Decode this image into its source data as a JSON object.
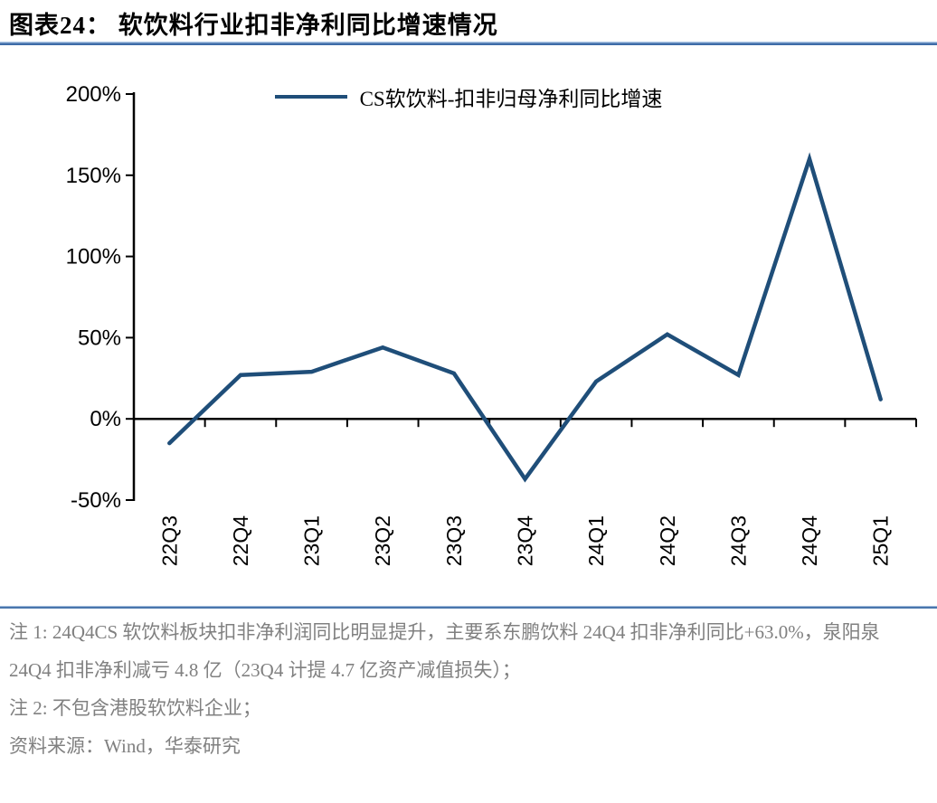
{
  "header": {
    "title": "图表24：  软饮料行业扣非净利同比增速情况"
  },
  "chart_data": {
    "type": "line",
    "title": "软饮料行业扣非净利同比增速情况",
    "categories": [
      "22Q3",
      "22Q4",
      "23Q1",
      "23Q2",
      "23Q3",
      "23Q4",
      "24Q1",
      "24Q2",
      "24Q3",
      "24Q4",
      "25Q1"
    ],
    "series": [
      {
        "name": "CS软饮料-扣非归母净利同比增速",
        "values": [
          -15,
          27,
          29,
          44,
          28,
          -37,
          23,
          52,
          27,
          160,
          12
        ]
      }
    ],
    "unit": "%",
    "ylim": [
      -50,
      200
    ],
    "y_tick_step": 50,
    "y_ticks": [
      {
        "value": 200,
        "label": "200%"
      },
      {
        "value": 150,
        "label": "150%"
      },
      {
        "value": 100,
        "label": "100%"
      },
      {
        "value": 50,
        "label": "50%"
      },
      {
        "value": 0,
        "label": "0%"
      },
      {
        "value": -50,
        "label": "-50%"
      }
    ],
    "legend_position": "top",
    "grid": false,
    "line_color": "#1F4E79",
    "axis_color": "#000000"
  },
  "notes": {
    "note1": "注 1: 24Q4CS 软饮料板块扣非净利润同比明显提升，主要系东鹏饮料 24Q4 扣非净利同比+63.0%，泉阳泉 24Q4 扣非净利减亏 4.8 亿（23Q4 计提 4.7 亿资产减值损失）；",
    "note2": "注 2: 不包含港股软饮料企业；",
    "source": "资料来源：Wind，华泰研究"
  },
  "colors": {
    "title_underline": "#3e6ca8",
    "notes_text": "#808080",
    "line": "#1F4E79",
    "axis": "#000000"
  }
}
